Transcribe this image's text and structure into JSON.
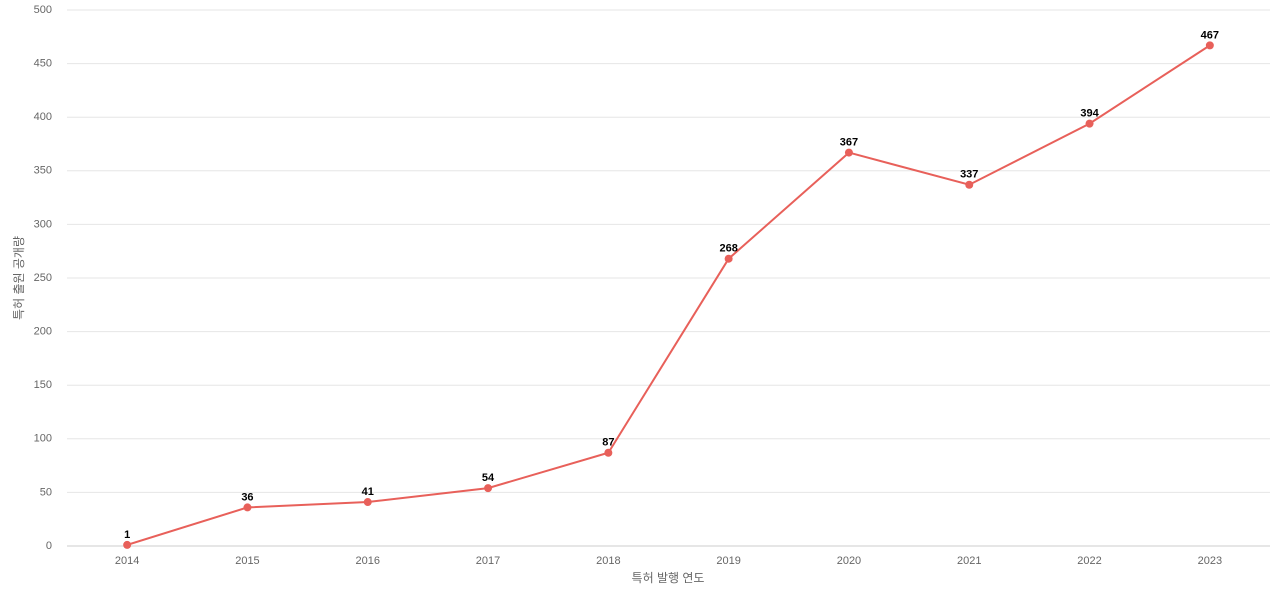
{
  "chart_data": {
    "type": "line",
    "x_label": "특허 발행 연도",
    "y_label": "특허 출원 공개량",
    "categories": [
      "2014",
      "2015",
      "2016",
      "2017",
      "2018",
      "2019",
      "2020",
      "2021",
      "2022",
      "2023"
    ],
    "values": [
      1,
      36,
      41,
      54,
      87,
      268,
      367,
      337,
      394,
      467
    ],
    "color": "#e8605a",
    "ylim": [
      0,
      500
    ],
    "yticks": [
      0,
      50,
      100,
      150,
      200,
      250,
      300,
      350,
      400,
      450,
      500
    ],
    "grid": true
  }
}
